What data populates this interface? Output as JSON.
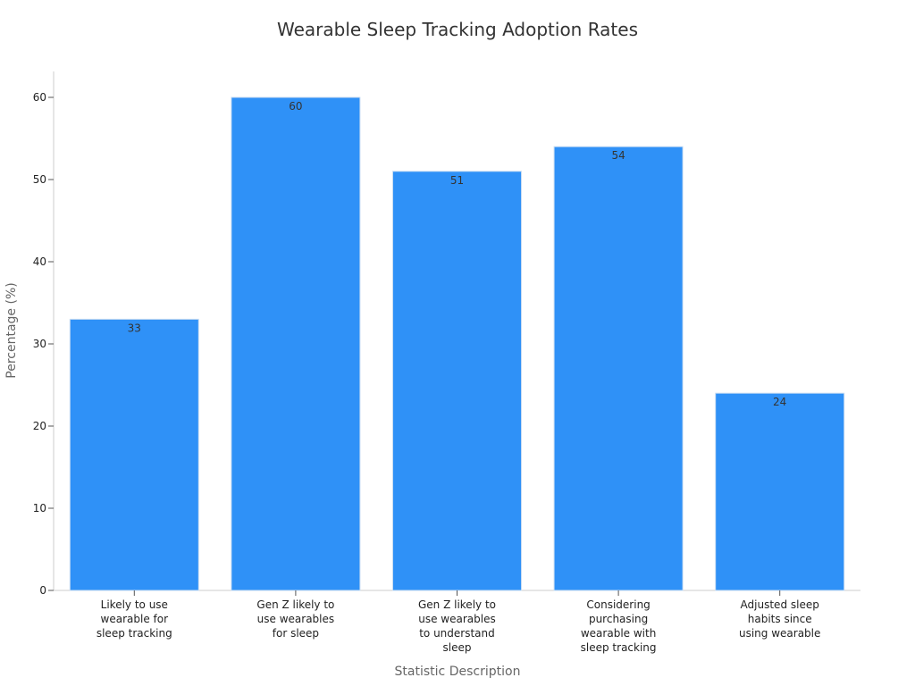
{
  "chart_data": {
    "type": "bar",
    "title": "Wearable Sleep Tracking Adoption Rates",
    "xlabel": "Statistic Description",
    "ylabel": "Percentage (%)",
    "categories": [
      [
        "Likely to use",
        "wearable for",
        "sleep tracking"
      ],
      [
        "Gen Z likely to",
        "use wearables",
        "for sleep"
      ],
      [
        "Gen Z likely to",
        "use wearables",
        "to understand",
        "sleep"
      ],
      [
        "Considering",
        "purchasing",
        "wearable with",
        "sleep tracking"
      ],
      [
        "Adjusted sleep",
        "habits since",
        "using wearable"
      ]
    ],
    "values": [
      33,
      60,
      51,
      54,
      24
    ],
    "data_labels": [
      "33",
      "60",
      "51",
      "54",
      "24"
    ],
    "ylim": [
      0,
      63
    ],
    "yticks": [
      0,
      10,
      20,
      30,
      40,
      50,
      60
    ],
    "ytick_labels": [
      "0",
      "10",
      "20",
      "30",
      "40",
      "50",
      "60"
    ],
    "bar_color": "#2f91f7",
    "grid": false,
    "legend": "none"
  }
}
